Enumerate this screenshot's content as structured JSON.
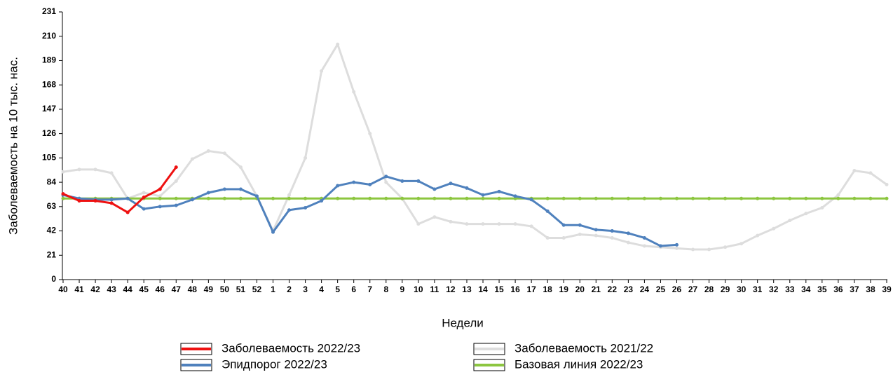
{
  "chart_data": {
    "type": "line",
    "y_label": "Заболеваемость на 10 тыс. нас.",
    "x_label": "Недели",
    "categories": [
      "40",
      "41",
      "42",
      "43",
      "44",
      "45",
      "46",
      "47",
      "48",
      "49",
      "50",
      "51",
      "52",
      "1",
      "2",
      "3",
      "4",
      "5",
      "6",
      "7",
      "8",
      "9",
      "10",
      "11",
      "12",
      "13",
      "14",
      "15",
      "16",
      "17",
      "18",
      "19",
      "20",
      "21",
      "22",
      "23",
      "24",
      "25",
      "26",
      "27",
      "28",
      "29",
      "30",
      "31",
      "32",
      "33",
      "34",
      "35",
      "36",
      "37",
      "38",
      "39"
    ],
    "series": [
      {
        "name": "Заболеваемость 2022/23",
        "color": "#ee1111",
        "values": [
          74,
          68,
          68,
          66,
          58,
          71,
          78,
          97,
          null,
          null,
          null,
          null,
          null,
          null,
          null,
          null,
          null,
          null,
          null,
          null,
          null,
          null,
          null,
          null,
          null,
          null,
          null,
          null,
          null,
          null,
          null,
          null,
          null,
          null,
          null,
          null,
          null,
          null,
          null,
          null,
          null,
          null,
          null,
          null,
          null,
          null,
          null,
          null,
          null,
          null,
          null,
          null
        ]
      },
      {
        "name": "Заболеваемость 2021/22",
        "color": "#dddddd",
        "values": [
          93,
          95,
          95,
          92,
          70,
          75,
          72,
          85,
          104,
          111,
          109,
          97,
          72,
          42,
          73,
          105,
          180,
          203,
          162,
          126,
          84,
          70,
          48,
          54,
          50,
          48,
          48,
          48,
          48,
          46,
          36,
          36,
          39,
          38,
          36,
          32,
          29,
          28,
          27,
          26,
          26,
          28,
          31,
          38,
          44,
          51,
          57,
          62,
          73,
          94,
          92,
          82
        ]
      },
      {
        "name": "Эпидпорог 2022/23",
        "color": "#4f81bd",
        "values": [
          73,
          70,
          69,
          69,
          70,
          61,
          63,
          64,
          69,
          75,
          78,
          78,
          72,
          41,
          60,
          62,
          68,
          81,
          84,
          82,
          89,
          85,
          85,
          78,
          83,
          79,
          73,
          76,
          72,
          69,
          59,
          47,
          47,
          43,
          42,
          40,
          36,
          29,
          30,
          null,
          null,
          null,
          null,
          null,
          null,
          null,
          null,
          null,
          null,
          null,
          null,
          null
        ]
      },
      {
        "name": "Базовая линия 2022/23",
        "color": "#8cc63f",
        "values": [
          70,
          70,
          70,
          70,
          70,
          70,
          70,
          70,
          70,
          70,
          70,
          70,
          70,
          70,
          70,
          70,
          70,
          70,
          70,
          70,
          70,
          70,
          70,
          70,
          70,
          70,
          70,
          70,
          70,
          70,
          70,
          70,
          70,
          70,
          70,
          70,
          70,
          70,
          70,
          70,
          70,
          70,
          70,
          70,
          70,
          70,
          70,
          70,
          70,
          70,
          70,
          70
        ]
      }
    ],
    "ylim": [
      0,
      231
    ],
    "yticks": [
      0,
      21,
      42,
      63,
      84,
      105,
      126,
      147,
      168,
      189,
      210,
      231
    ]
  }
}
